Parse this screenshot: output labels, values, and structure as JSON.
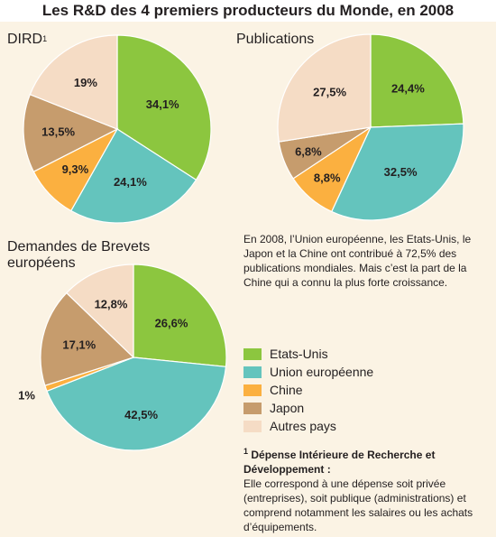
{
  "title": "Les R&D des 4 premiers producteurs du Monde, en 2008",
  "colors": {
    "etats_unis": "#8cc63f",
    "union_europeenne": "#64c4bd",
    "chine": "#fbb040",
    "japon": "#c69c6d",
    "autres_pays": "#f5dcc5"
  },
  "chart_data": [
    {
      "type": "pie",
      "title": "DIRD",
      "title_superscript": "1",
      "categories": [
        "Etats-Unis",
        "Union européenne",
        "Chine",
        "Japon",
        "Autres pays"
      ],
      "values": [
        34.1,
        24.1,
        9.3,
        13.5,
        19
      ],
      "labels": [
        "34,1%",
        "24,1%",
        "9,3%",
        "13,5%",
        "19%"
      ],
      "start_angle_deg": 0,
      "direction": "clockwise"
    },
    {
      "type": "pie",
      "title": "Publications",
      "categories": [
        "Etats-Unis",
        "Union européenne",
        "Chine",
        "Japon",
        "Autres pays"
      ],
      "values": [
        24.4,
        32.5,
        8.8,
        6.8,
        27.5
      ],
      "labels": [
        "24,4%",
        "32,5%",
        "8,8%",
        "6,8%",
        "27,5%"
      ],
      "start_angle_deg": 0,
      "direction": "clockwise"
    },
    {
      "type": "pie",
      "title_lines": [
        "Demandes de Brevets",
        "européens"
      ],
      "categories": [
        "Etats-Unis",
        "Union européenne",
        "Chine",
        "Japon",
        "Autres pays"
      ],
      "values": [
        26.6,
        42.5,
        1,
        17.1,
        12.8
      ],
      "labels": [
        "26,6%",
        "42,5%",
        "1%",
        "17,1%",
        "12,8%"
      ],
      "start_angle_deg": 0,
      "direction": "clockwise"
    }
  ],
  "note": "En 2008, l’Union européenne, les Etats-Unis, le Japon et la Chine ont contribué à 72,5% des publications mondiales. Mais c’est la part de la Chine qui a connu la plus forte croissance.",
  "legend": {
    "placement": "right",
    "items": [
      {
        "label": "Etats-Unis",
        "color": "#8cc63f"
      },
      {
        "label": "Union européenne",
        "color": "#64c4bd"
      },
      {
        "label": "Chine",
        "color": "#fbb040"
      },
      {
        "label": "Japon",
        "color": "#c69c6d"
      },
      {
        "label": "Autres pays",
        "color": "#f5dcc5"
      }
    ]
  },
  "footnote": {
    "mark": "1",
    "heading": "Dépense Intérieure de Recherche et Développement :",
    "body": "Elle correspond à une dépense soit privée (entreprises), soit publique (administrations) et comprend notamment les salaires ou les achats d’équipements."
  }
}
